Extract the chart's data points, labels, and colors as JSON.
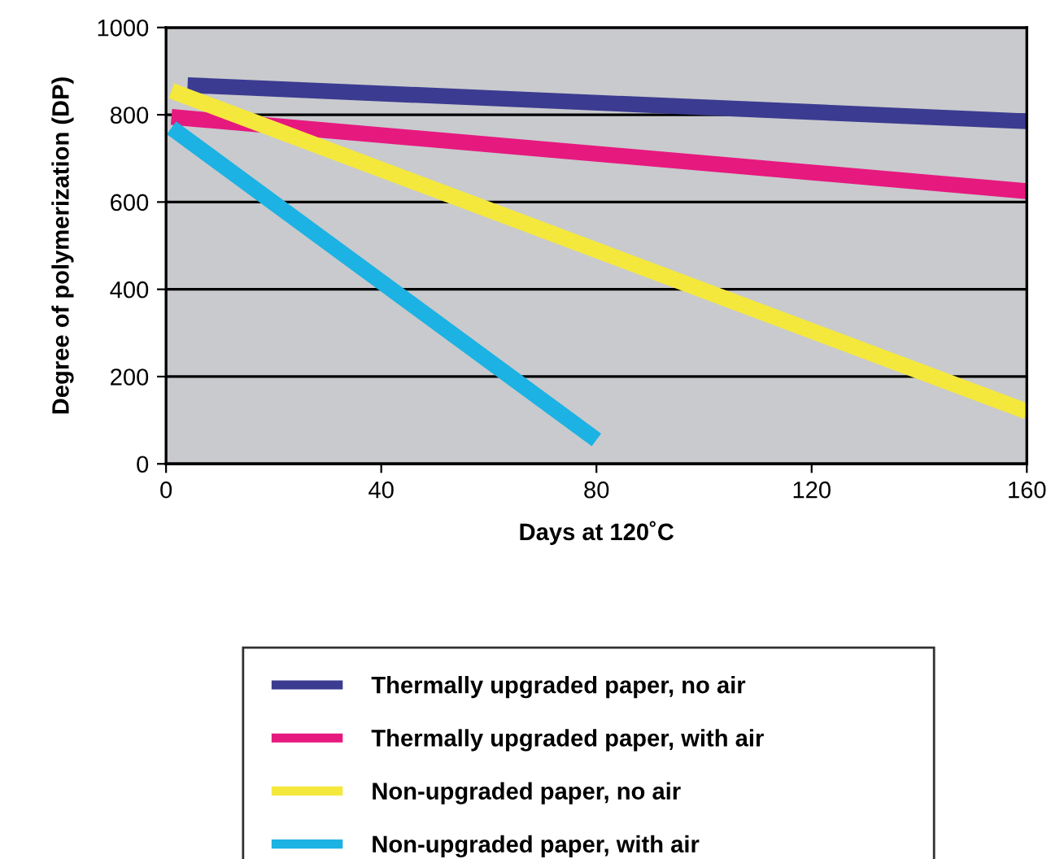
{
  "chart_data": {
    "type": "line",
    "xlabel": "Days at 120˚C",
    "ylabel": "Degree of polymerization (DP)",
    "xlim": [
      0,
      160
    ],
    "xticks": [
      0,
      40,
      80,
      120,
      160
    ],
    "ylim": [
      0,
      1000
    ],
    "yticks": [
      0,
      200,
      400,
      600,
      800,
      1000
    ],
    "grid": "y",
    "legend": "bottom",
    "marker": "none",
    "line_style": "solid",
    "series": [
      {
        "name": "Thermally upgraded paper, no air",
        "color": "#3b3b91",
        "x": [
          4,
          160
        ],
        "values": [
          868,
          785
        ]
      },
      {
        "name": "Thermally upgraded paper, with air",
        "color": "#e6197f",
        "x": [
          1,
          160
        ],
        "values": [
          795,
          625
        ]
      },
      {
        "name": "Non-upgraded paper, no air",
        "color": "#f5e83c",
        "x": [
          1,
          160
        ],
        "values": [
          855,
          120
        ]
      },
      {
        "name": "Non-upgraded paper, with air",
        "color": "#1cb2e3",
        "x": [
          1,
          80
        ],
        "values": [
          770,
          55
        ]
      }
    ]
  }
}
